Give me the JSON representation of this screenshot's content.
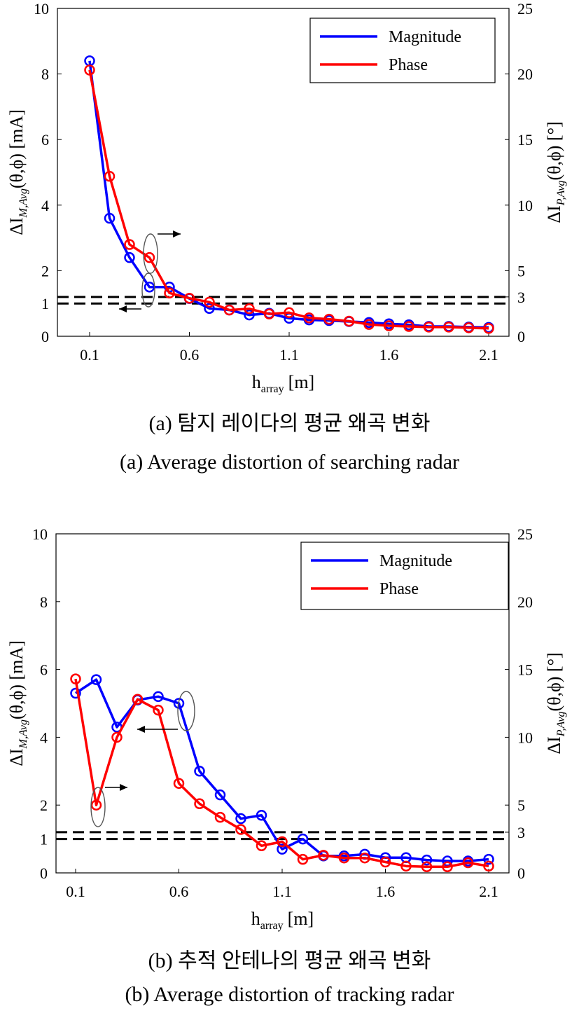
{
  "chart_data": [
    {
      "type": "line",
      "x": [
        0.1,
        0.2,
        0.3,
        0.4,
        0.5,
        0.6,
        0.7,
        0.8,
        0.9,
        1.0,
        1.1,
        1.2,
        1.3,
        1.4,
        1.5,
        1.6,
        1.7,
        1.8,
        1.9,
        2.0,
        2.1
      ],
      "xticks": [
        "0.1",
        "0.6",
        "1.1",
        "1.6",
        "2.1"
      ],
      "xlim": [
        0.1,
        2.1
      ],
      "xlabel_main": "h",
      "xlabel_sub": "array",
      "xlabel_unit": "[m]",
      "ylabel_left": "ΔI",
      "ylabel_left_sub": "M,Avg",
      "ylabel_left_rest": "(θ,ϕ) [mA]",
      "ylabel_right": "ΔI",
      "ylabel_right_sub": "P,Avg",
      "ylabel_right_rest": "(θ,ϕ) [°]",
      "ylim_left": [
        0,
        10
      ],
      "ylim_right": [
        0,
        25
      ],
      "yticks_left": [
        "0",
        "1",
        "2",
        "4",
        "6",
        "8",
        "10"
      ],
      "yticks_right": [
        "0",
        "3",
        "5",
        "10",
        "15",
        "20",
        "25"
      ],
      "threshold_left": 1,
      "threshold_right": 3,
      "series": [
        {
          "name": "Magnitude",
          "axis": "left",
          "color": "#0000ff",
          "values": [
            8.4,
            3.6,
            2.4,
            1.5,
            1.5,
            1.15,
            0.85,
            0.8,
            0.65,
            0.7,
            0.55,
            0.5,
            0.48,
            0.45,
            0.42,
            0.38,
            0.35,
            0.3,
            0.3,
            0.28,
            0.27
          ]
        },
        {
          "name": "Phase",
          "axis": "right",
          "color": "#ff0000",
          "values": [
            20.3,
            12.2,
            7.0,
            6.0,
            3.3,
            2.9,
            2.6,
            2.0,
            2.1,
            1.7,
            1.8,
            1.4,
            1.3,
            1.15,
            0.9,
            0.8,
            0.75,
            0.7,
            0.7,
            0.65,
            0.6
          ]
        }
      ],
      "caption_ko": "(a) 탐지 레이다의 평균 왜곡 변화",
      "caption_en": "(a) Average distortion of searching radar"
    },
    {
      "type": "line",
      "x": [
        0.1,
        0.2,
        0.3,
        0.4,
        0.5,
        0.6,
        0.7,
        0.8,
        0.9,
        1.0,
        1.1,
        1.2,
        1.3,
        1.4,
        1.5,
        1.6,
        1.7,
        1.8,
        1.9,
        2.0,
        2.1
      ],
      "xticks": [
        "0.1",
        "0.6",
        "1.1",
        "1.6",
        "2.1"
      ],
      "xlim": [
        0.1,
        2.1
      ],
      "xlabel_main": "h",
      "xlabel_sub": "array",
      "xlabel_unit": "[m]",
      "ylabel_left": "ΔI",
      "ylabel_left_sub": "M,Avg",
      "ylabel_left_rest": "(θ,ϕ) [mA]",
      "ylabel_right": "ΔI",
      "ylabel_right_sub": "P,Avg",
      "ylabel_right_rest": "(θ,ϕ) [°]",
      "ylim_left": [
        0,
        10
      ],
      "ylim_right": [
        0,
        25
      ],
      "yticks_left": [
        "0",
        "1",
        "2",
        "4",
        "6",
        "8",
        "10"
      ],
      "yticks_right": [
        "0",
        "3",
        "5",
        "10",
        "15",
        "20",
        "25"
      ],
      "threshold_left": 1,
      "threshold_right": 3,
      "series": [
        {
          "name": "Magnitude",
          "axis": "left",
          "color": "#0000ff",
          "values": [
            5.3,
            5.7,
            4.3,
            5.1,
            5.2,
            5.0,
            3.0,
            2.3,
            1.6,
            1.7,
            0.7,
            1.0,
            0.5,
            0.5,
            0.55,
            0.45,
            0.45,
            0.38,
            0.35,
            0.35,
            0.4
          ]
        },
        {
          "name": "Phase",
          "axis": "right",
          "color": "#ff0000",
          "values": [
            14.3,
            5.0,
            10.0,
            12.8,
            12.0,
            6.6,
            5.1,
            4.1,
            3.2,
            2.0,
            2.3,
            1.0,
            1.3,
            1.1,
            1.1,
            0.8,
            0.5,
            0.45,
            0.45,
            0.75,
            0.5
          ]
        }
      ],
      "caption_ko": "(b) 추적 안테나의 평균 왜곡 변화",
      "caption_en": "(b) Average distortion of tracking radar"
    }
  ]
}
